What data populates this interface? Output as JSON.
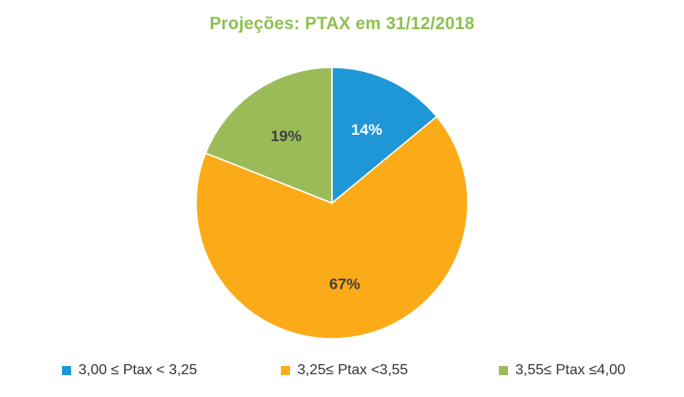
{
  "chart_data": {
    "type": "pie",
    "title": "Projeções: PTAX em 31/12/2018",
    "categories": [
      "3,00 ≤ Ptax < 3,25",
      "3,25≤ Ptax <3,55",
      "3,55≤ Ptax ≤4,00"
    ],
    "values": [
      14,
      67,
      19
    ],
    "data_labels": [
      "14%",
      "67%",
      "19%"
    ],
    "colors": [
      "#1f96d6",
      "#fbab18",
      "#9bbb59"
    ],
    "label_colors": [
      "#ffffff",
      "#404040",
      "#404040"
    ],
    "legend_position": "bottom",
    "start_angle": "12 o'clock, clockwise"
  }
}
